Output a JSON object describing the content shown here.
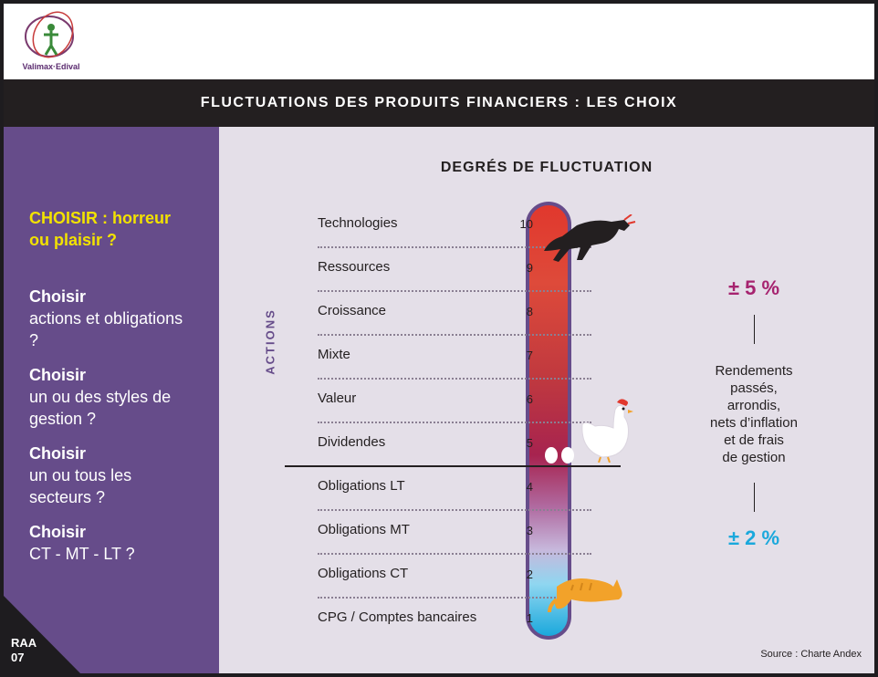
{
  "header": {
    "logo_text": "Valimax·Edival"
  },
  "title": "FLUCTUATIONS DES PRODUITS FINANCIERS : LES CHOIX",
  "sidebar": {
    "q1": "CHOISIR : horreur ou plaisir ?",
    "q2_title": "Choisir",
    "q2_text": "actions et obligations ?",
    "q3_title": "Choisir",
    "q3_text": "un ou des styles de gestion ?",
    "q4_title": "Choisir",
    "q4_text": "un ou tous les secteurs ?",
    "q5_title": "Choisir",
    "q5_text": "CT - MT - LT ?",
    "code_line1": "RAA",
    "code_line2": "07"
  },
  "main": {
    "heading": "DEGRÉS DE FLUCTUATION",
    "actions_label": "ACTIONS",
    "rows": [
      {
        "label": "Technologies",
        "num": "10"
      },
      {
        "label": "Ressources",
        "num": "9"
      },
      {
        "label": "Croissance",
        "num": "8"
      },
      {
        "label": "Mixte",
        "num": "7"
      },
      {
        "label": "Valeur",
        "num": "6"
      },
      {
        "label": "Dividendes",
        "num": "5"
      },
      {
        "label": "Obligations LT",
        "num": "4"
      },
      {
        "label": "Obligations MT",
        "num": "3"
      },
      {
        "label": "Obligations CT",
        "num": "2"
      },
      {
        "label": "CPG / Comptes bancaires",
        "num": "1"
      }
    ],
    "pct_high": "± 5 %",
    "pct_low": "± 2 %",
    "rendements": [
      "Rendements",
      "passés,",
      "arrondis,",
      "nets d’inflation",
      "et de frais",
      "de gestion"
    ],
    "source": "Source : Charte Andex"
  },
  "colors": {
    "purple": "#664c8a",
    "yellow": "#f2e200",
    "magenta": "#a6236f",
    "cyan": "#1aa8dc",
    "dark": "#231f20"
  }
}
